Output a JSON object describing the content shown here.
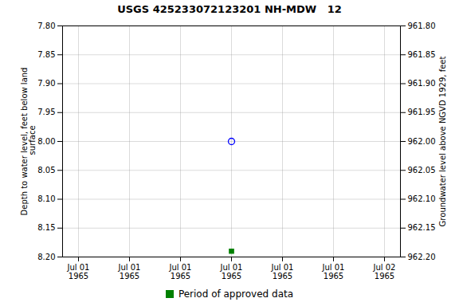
{
  "chart_data": {
    "type": "scatter",
    "title": "USGS 425233072123201 NH-MDW   12",
    "categories": [
      "Jul 01\n1965",
      "Jul 01\n1965",
      "Jul 01\n1965",
      "Jul 01\n1965",
      "Jul 01\n1965",
      "Jul 01\n1965",
      "Jul 02\n1965"
    ],
    "series": [
      {
        "color": "blue",
        "marker": "circle",
        "values": [
          null,
          null,
          null,
          8.0,
          null,
          null,
          null
        ]
      },
      {
        "name": "Period of approved data",
        "color": "#008000",
        "marker": "square",
        "values": [
          null,
          null,
          null,
          8.19,
          null,
          null,
          null
        ]
      }
    ],
    "ylabel": "Depth to water level, feet below land\n surface",
    "y2label": "Groundwater level above NGVD 1929, feet",
    "ylim": [
      8.2,
      7.8
    ],
    "yticks": [
      {
        "value": 7.8,
        "label": "7.80"
      },
      {
        "value": 7.85,
        "label": "7.85"
      },
      {
        "value": 7.9,
        "label": "7.90"
      },
      {
        "value": 7.95,
        "label": "7.95"
      },
      {
        "value": 8.0,
        "label": "8.00"
      },
      {
        "value": 8.05,
        "label": "8.05"
      },
      {
        "value": 8.1,
        "label": "8.10"
      },
      {
        "value": 8.15,
        "label": "8.15"
      },
      {
        "value": 8.2,
        "label": "8.20"
      }
    ],
    "y2lim": [
      962.2,
      961.8
    ],
    "y2ticks": [
      {
        "value": 961.8,
        "label": "961.80"
      },
      {
        "value": 961.85,
        "label": "961.85"
      },
      {
        "value": 961.9,
        "label": "961.90"
      },
      {
        "value": 961.95,
        "label": "961.95"
      },
      {
        "value": 962.0,
        "label": "962.00"
      },
      {
        "value": 962.05,
        "label": "962.05"
      },
      {
        "value": 962.1,
        "label": "962.10"
      },
      {
        "value": 962.15,
        "label": "962.15"
      },
      {
        "value": 962.2,
        "label": "962.20"
      }
    ],
    "grid": true,
    "legend": "bottom"
  }
}
